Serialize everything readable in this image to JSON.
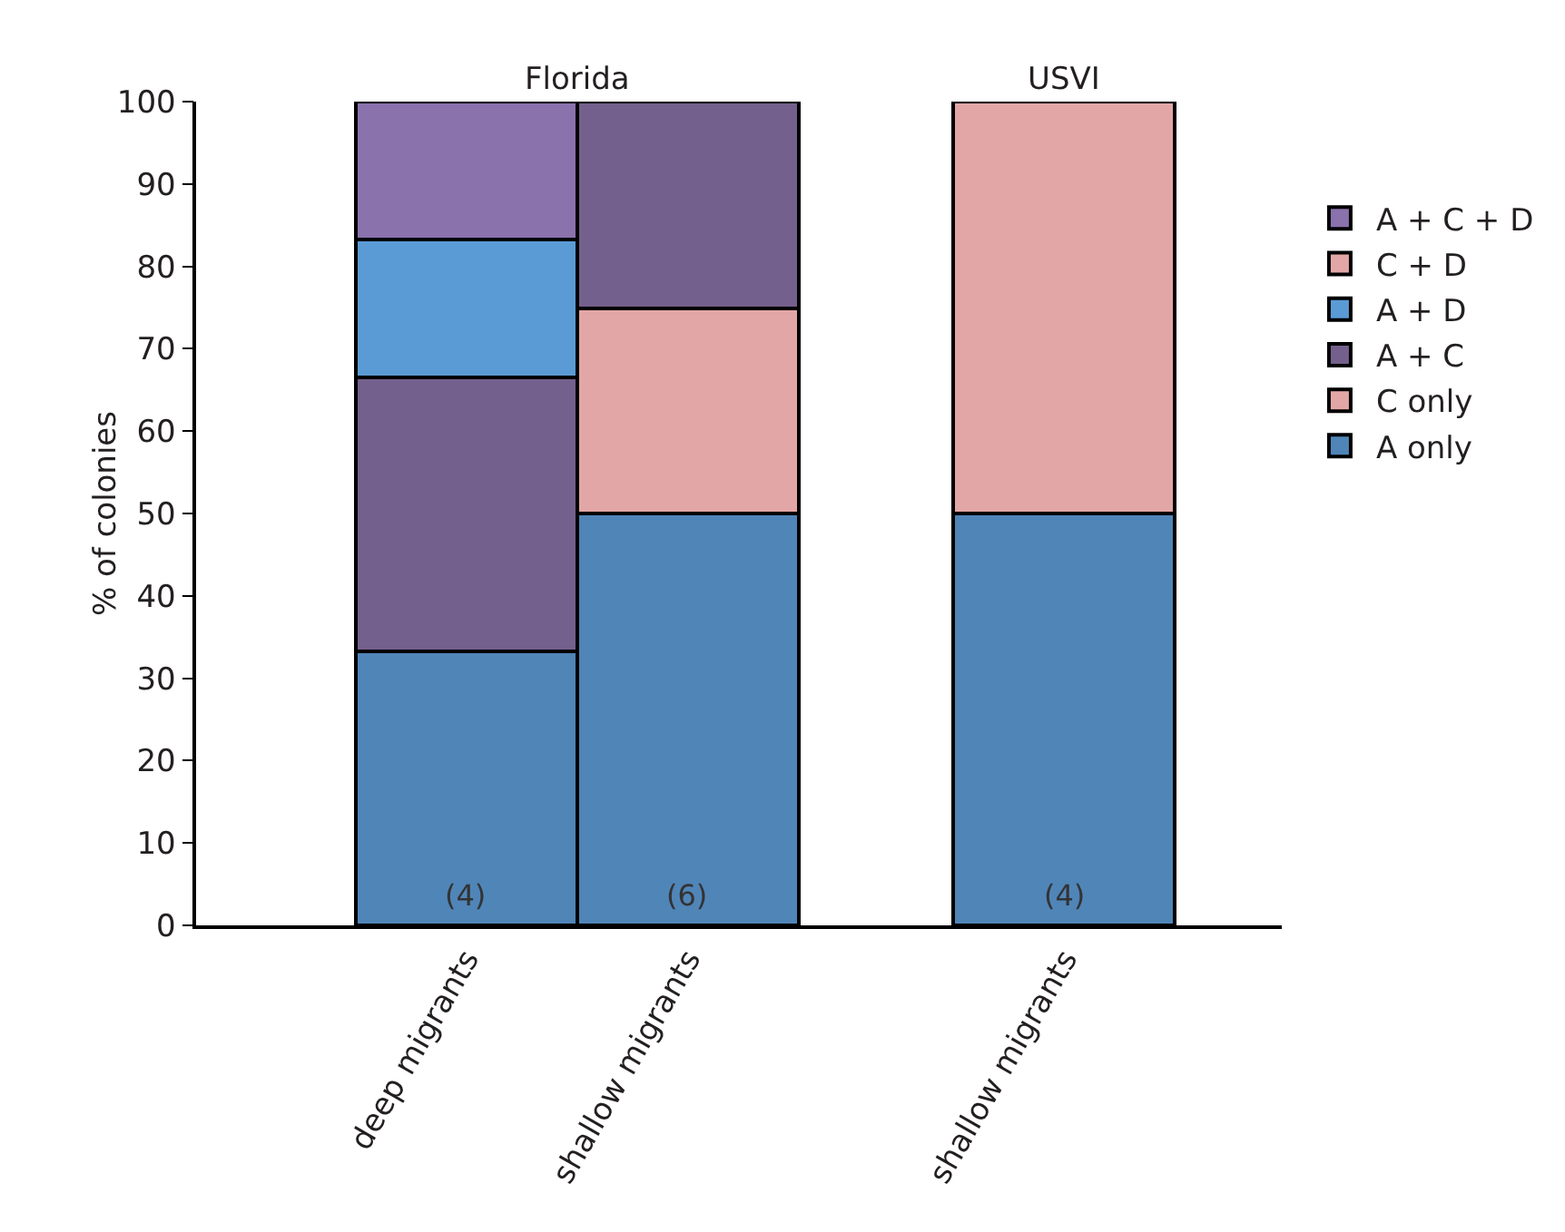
{
  "chart_data": {
    "type": "bar",
    "stacked": true,
    "ylabel": "% of colonies",
    "categories": [
      "deep migrants",
      "shallow migrants",
      "shallow migrants"
    ],
    "series": [
      {
        "name": "A only",
        "color": "#5085b8",
        "values": [
          33.3,
          50,
          50
        ]
      },
      {
        "name": "C only",
        "color": "#e3a6a6",
        "values": [
          null,
          25,
          50
        ]
      },
      {
        "name": "A + C",
        "color": "#74608c",
        "values": [
          33.3,
          25,
          null
        ]
      },
      {
        "name": "A + D",
        "color": "#5b9bd5",
        "values": [
          16.7,
          null,
          null
        ]
      },
      {
        "name": "C + D",
        "color": "#e3a6a6",
        "values": [
          null,
          null,
          null
        ]
      },
      {
        "name": "A + C + D",
        "color": "#8a72ad",
        "values": [
          16.7,
          null,
          null
        ]
      }
    ],
    "ylim": [
      0,
      100
    ],
    "yticks": [
      0,
      10,
      20,
      30,
      40,
      50,
      60,
      70,
      80,
      90,
      100
    ],
    "grid": false,
    "legend": "right",
    "annotations": [
      "Florida",
      "USVI",
      "(4)",
      "(6)",
      "(4)"
    ]
  }
}
